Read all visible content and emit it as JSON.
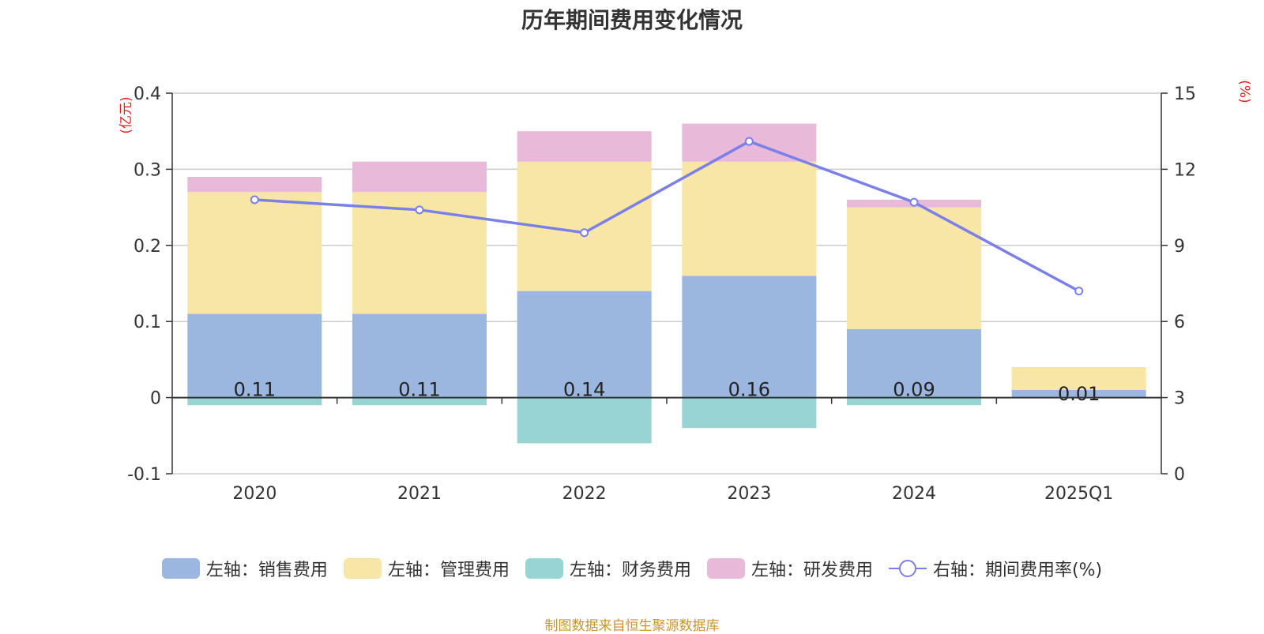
{
  "chart_data": {
    "type": "bar",
    "title": "历年期间费用变化情况",
    "categories": [
      "2020",
      "2021",
      "2022",
      "2023",
      "2024",
      "2025Q1"
    ],
    "series": [
      {
        "name": "左轴：销售费用",
        "axis": "left",
        "type": "bar",
        "color": "#9BB7E0",
        "values": [
          0.11,
          0.11,
          0.14,
          0.16,
          0.09,
          0.01
        ]
      },
      {
        "name": "左轴：管理费用",
        "axis": "left",
        "type": "bar",
        "color": "#F7E6A6",
        "values": [
          0.16,
          0.16,
          0.17,
          0.15,
          0.16,
          0.03
        ]
      },
      {
        "name": "左轴：财务费用",
        "axis": "left",
        "type": "bar",
        "color": "#97D4D3",
        "values": [
          -0.01,
          -0.01,
          -0.06,
          -0.04,
          -0.01,
          0.0
        ]
      },
      {
        "name": "左轴：研发费用",
        "axis": "left",
        "type": "bar",
        "color": "#E8B9D9",
        "values": [
          0.02,
          0.04,
          0.04,
          0.05,
          0.01,
          0.0
        ]
      },
      {
        "name": "右轴：期间费用率(%)",
        "axis": "right",
        "type": "line",
        "color": "#7B7FE8",
        "values": [
          10.8,
          10.4,
          9.5,
          13.1,
          10.7,
          7.2
        ]
      }
    ],
    "bar_labels": [
      "0.11",
      "0.11",
      "0.14",
      "0.16",
      "0.09",
      "0.01"
    ],
    "y_left": {
      "label": "(亿元)",
      "min": -0.1,
      "max": 0.4,
      "ticks": [
        "-0.1",
        "0",
        "0.1",
        "0.2",
        "0.3",
        "0.4"
      ]
    },
    "y_right": {
      "label": "(%)",
      "min": 0,
      "max": 15,
      "ticks": [
        "0",
        "3",
        "6",
        "9",
        "12",
        "15"
      ]
    },
    "grid": true,
    "legend_position": "bottom"
  },
  "source": "制图数据来自恒生聚源数据库"
}
